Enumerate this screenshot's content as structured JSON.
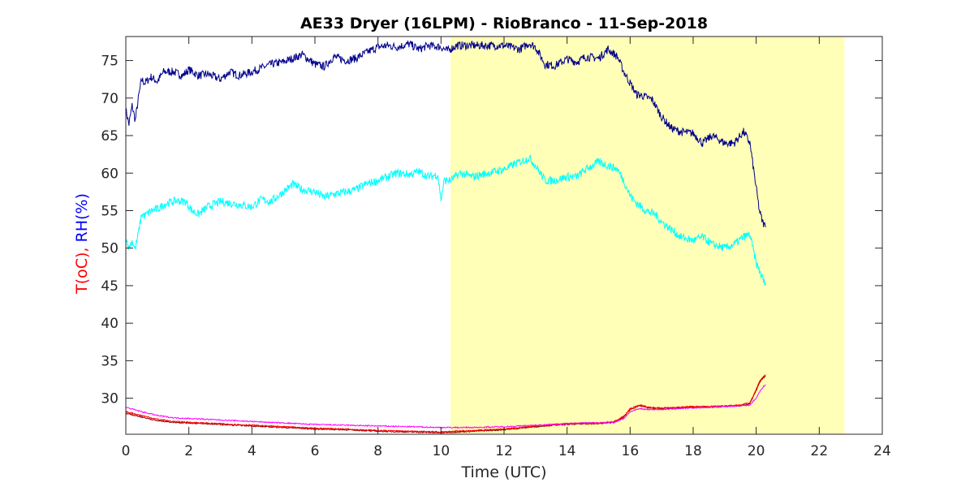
{
  "chart_data": {
    "type": "line",
    "title": "AE33 Dryer (16LPM)  - RioBranco - 11-Sep-2018",
    "xlabel": "Time (UTC)",
    "ylabel_parts": [
      {
        "text": "T(oC),",
        "color": "#ff0000"
      },
      {
        "text": " RH(%)",
        "color": "#0000ff"
      }
    ],
    "xlim": [
      0,
      24
    ],
    "ylim": [
      25.2,
      78.2
    ],
    "xticks": [
      0,
      2,
      4,
      6,
      8,
      10,
      12,
      14,
      16,
      18,
      20,
      22,
      24
    ],
    "yticks": [
      30,
      35,
      40,
      45,
      50,
      55,
      60,
      65,
      70,
      75
    ],
    "grid": false,
    "shaded_region": {
      "x": [
        10.3,
        22.8
      ],
      "color": "#ffffb8"
    },
    "series": [
      {
        "color": "#00008b",
        "x": [
          0,
          0.1,
          0.2,
          0.3,
          0.4,
          0.5,
          0.6,
          0.8,
          1.0,
          1.2,
          1.5,
          1.8,
          2.0,
          2.3,
          2.6,
          3.0,
          3.3,
          3.6,
          4.0,
          4.3,
          4.6,
          5.0,
          5.3,
          5.6,
          6.0,
          6.3,
          6.6,
          7.0,
          7.3,
          7.6,
          8.0,
          8.3,
          8.6,
          9.0,
          9.3,
          9.6,
          10.0,
          10.2,
          10.5,
          11.0,
          11.5,
          12.0,
          12.5,
          12.8,
          13.0,
          13.3,
          13.6,
          14.0,
          14.3,
          14.6,
          15.0,
          15.3,
          15.6,
          15.8,
          16.0,
          16.2,
          16.4,
          16.7,
          17.0,
          17.3,
          17.6,
          18.0,
          18.3,
          18.6,
          19.0,
          19.3,
          19.6,
          19.8,
          20.0,
          20.1,
          20.2,
          20.3
        ],
        "y": [
          68.5,
          66.5,
          69.0,
          67.0,
          70.0,
          72.5,
          72.0,
          72.8,
          72.2,
          73.5,
          73.5,
          73.0,
          73.8,
          73.0,
          73.2,
          72.5,
          73.5,
          73.0,
          73.5,
          74.0,
          74.5,
          74.8,
          75.3,
          75.8,
          74.5,
          74.2,
          75.5,
          75.0,
          75.3,
          76.0,
          76.8,
          77.0,
          76.8,
          77.2,
          76.5,
          77.0,
          76.8,
          76.3,
          77.0,
          77.0,
          77.0,
          77.0,
          76.5,
          77.3,
          76.8,
          74.5,
          74.3,
          75.2,
          74.8,
          75.5,
          75.3,
          76.5,
          75.5,
          73.5,
          72.0,
          70.5,
          70.3,
          69.8,
          67.5,
          66.0,
          65.5,
          65.3,
          64.0,
          65.0,
          64.0,
          64.0,
          65.5,
          64.0,
          58.0,
          55.0,
          53.5,
          52.8
        ]
      },
      {
        "color": "#00ffff",
        "x": [
          0,
          0.1,
          0.2,
          0.3,
          0.4,
          0.5,
          0.6,
          0.8,
          1.0,
          1.3,
          1.6,
          1.9,
          2.1,
          2.3,
          2.6,
          3.0,
          3.3,
          3.6,
          4.0,
          4.3,
          4.6,
          5.0,
          5.3,
          5.6,
          6.0,
          6.3,
          6.6,
          7.0,
          7.3,
          7.6,
          8.0,
          8.3,
          8.6,
          9.0,
          9.3,
          9.6,
          9.9,
          10.0,
          10.1,
          10.3,
          10.6,
          11.0,
          11.5,
          12.0,
          12.5,
          12.8,
          13.0,
          13.3,
          13.6,
          14.0,
          14.3,
          14.6,
          15.0,
          15.3,
          15.6,
          15.8,
          16.0,
          16.2,
          16.5,
          16.8,
          17.0,
          17.3,
          17.6,
          18.0,
          18.3,
          18.6,
          19.0,
          19.3,
          19.6,
          19.8,
          20.0,
          20.1,
          20.2,
          20.3
        ],
        "y": [
          51.5,
          50.0,
          51.0,
          49.8,
          52.0,
          54.5,
          54.3,
          55.0,
          55.2,
          56.0,
          56.3,
          56.2,
          55.0,
          54.5,
          55.5,
          56.2,
          56.0,
          55.8,
          55.5,
          56.5,
          56.2,
          57.5,
          58.5,
          57.8,
          57.5,
          56.8,
          57.2,
          57.5,
          57.8,
          58.5,
          59.0,
          59.5,
          60.0,
          59.8,
          60.2,
          59.5,
          59.8,
          56.5,
          59.0,
          59.0,
          60.0,
          59.5,
          60.0,
          60.5,
          61.5,
          62.0,
          61.0,
          59.0,
          59.0,
          59.5,
          59.5,
          60.5,
          61.5,
          61.0,
          60.5,
          59.0,
          57.0,
          56.0,
          55.0,
          54.5,
          53.5,
          52.5,
          51.5,
          51.0,
          51.5,
          50.5,
          50.0,
          50.5,
          51.5,
          51.8,
          48.0,
          47.0,
          46.0,
          45.0
        ]
      },
      {
        "color": "#8b0000",
        "x": [
          0,
          0.5,
          1.0,
          1.5,
          2.0,
          2.5,
          3.0,
          3.5,
          4.0,
          5.0,
          6.0,
          7.0,
          8.0,
          9.0,
          10.0,
          10.5,
          11.0,
          12.0,
          12.5,
          13.0,
          13.5,
          14.0,
          14.5,
          15.0,
          15.5,
          15.8,
          16.0,
          16.3,
          16.6,
          17.0,
          17.5,
          18.0,
          18.5,
          19.0,
          19.5,
          19.8,
          20.0,
          20.1,
          20.2,
          20.3
        ],
        "y": [
          28.0,
          27.5,
          27.0,
          26.8,
          26.7,
          26.6,
          26.5,
          26.4,
          26.3,
          26.1,
          25.9,
          25.8,
          25.6,
          25.5,
          25.4,
          25.5,
          25.6,
          25.8,
          26.0,
          26.2,
          26.4,
          26.5,
          26.6,
          26.6,
          26.8,
          27.5,
          28.5,
          29.0,
          28.7,
          28.6,
          28.7,
          28.8,
          28.8,
          28.9,
          29.0,
          29.3,
          31.0,
          32.0,
          32.6,
          33.0
        ]
      },
      {
        "color": "#ff0000",
        "x": [
          0,
          0.5,
          1.0,
          1.5,
          2.0,
          2.5,
          3.0,
          3.5,
          4.0,
          5.0,
          6.0,
          7.0,
          8.0,
          9.0,
          10.0,
          10.5,
          11.0,
          12.0,
          12.5,
          13.0,
          13.5,
          14.0,
          14.5,
          15.0,
          15.5,
          15.8,
          16.0,
          16.3,
          16.6,
          17.0,
          17.5,
          18.0,
          18.5,
          19.0,
          19.5,
          19.8,
          20.0,
          20.1,
          20.2,
          20.3
        ],
        "y": [
          28.2,
          27.7,
          27.2,
          26.9,
          26.8,
          26.7,
          26.6,
          26.5,
          26.4,
          26.2,
          26.0,
          25.9,
          25.7,
          25.6,
          25.5,
          25.6,
          25.7,
          25.9,
          26.1,
          26.3,
          26.5,
          26.6,
          26.7,
          26.7,
          26.9,
          27.6,
          28.6,
          29.1,
          28.8,
          28.7,
          28.8,
          28.9,
          28.9,
          29.0,
          29.1,
          29.4,
          31.2,
          32.2,
          32.8,
          33.1
        ]
      },
      {
        "color": "#ff00ff",
        "x": [
          0,
          0.5,
          1.0,
          1.5,
          2.0,
          2.5,
          3.0,
          3.5,
          4.0,
          5.0,
          6.0,
          7.0,
          8.0,
          9.0,
          10.0,
          10.5,
          11.0,
          12.0,
          12.5,
          13.0,
          13.5,
          14.0,
          14.5,
          15.0,
          15.5,
          15.8,
          16.0,
          16.3,
          16.6,
          17.0,
          17.5,
          18.0,
          18.5,
          19.0,
          19.5,
          19.8,
          20.0,
          20.1,
          20.2,
          20.3
        ],
        "y": [
          28.8,
          28.2,
          27.7,
          27.4,
          27.3,
          27.2,
          27.1,
          27.0,
          26.9,
          26.7,
          26.5,
          26.4,
          26.3,
          26.2,
          26.1,
          26.1,
          26.1,
          26.2,
          26.3,
          26.4,
          26.5,
          26.6,
          26.7,
          26.7,
          26.8,
          27.3,
          28.2,
          28.6,
          28.5,
          28.5,
          28.6,
          28.7,
          28.8,
          28.9,
          29.0,
          29.1,
          30.0,
          30.8,
          31.4,
          31.8
        ]
      }
    ]
  }
}
